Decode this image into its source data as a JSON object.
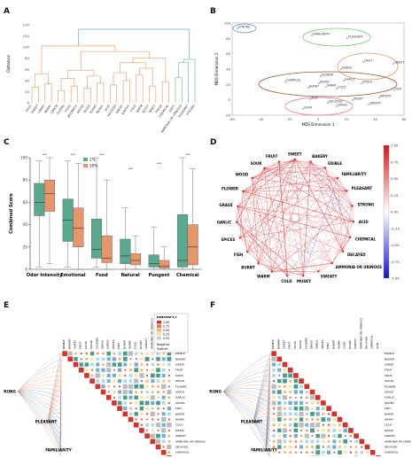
{
  "panels": {
    "a": {
      "label": "A",
      "ylabel": "Distance",
      "yticks": [
        "0",
        "20",
        "40",
        "60",
        "80",
        "100",
        "120",
        "140"
      ],
      "leaves": [
        "FRUIT",
        "SWEET",
        "CANDY",
        "BERRY",
        "LEMON",
        "FLORAL",
        "FOOD",
        "AROMATIC",
        "SPICES",
        "WOOD",
        "BURNT",
        "MUSKY",
        "ACID",
        "DECAYED",
        "SMOKY",
        "EARTHY",
        "COLD",
        "WARM",
        "NUTTY",
        "MINTY",
        "FRESH",
        "CHEMICAL",
        "DIRTY",
        "AMMONIA OR URINOUS",
        "PLEASANT",
        "STRONG"
      ],
      "colors": {
        "orange": "#f2a36b",
        "green": "#6fcf8a",
        "blue": "#6aaed6"
      }
    },
    "b": {
      "label": "B",
      "xlabel": "MDS Dimension 1",
      "ylabel": "MDS Dimension 2",
      "xticks": [
        "-60",
        "-40",
        "-20",
        "0",
        "20",
        "40",
        "60"
      ],
      "yticks": [
        "100",
        "80",
        "60",
        "40",
        "20",
        "0",
        "-20"
      ],
      "points": [
        "STRONG",
        "FAMILIARITY",
        "PLEASANT",
        "FRUIT",
        "SWEET",
        "EDIBLE",
        "CHEMICAL",
        "WOOD",
        "FLOWER",
        "GARLIC",
        "SPICES",
        "BURNT",
        "WARM",
        "COLD",
        "FISH",
        "ACID",
        "DECAYED",
        "MUSKY",
        "SWEATY",
        "BAKERY",
        "SOUR",
        "GRASS"
      ]
    },
    "c": {
      "label": "C",
      "ylabel": "Combined Score",
      "yticks": [
        "0",
        "20",
        "40",
        "60",
        "80",
        "100"
      ],
      "legend": [
        "1%",
        "10%"
      ],
      "sig": "***",
      "colors": {
        "one": "#5aa88d",
        "ten": "#e8956b"
      }
    },
    "d": {
      "label": "D",
      "nodes": [
        "SOUR",
        "FRUIT",
        "SWEET",
        "BAKERY",
        "EDIBLE",
        "FAMILIARITY",
        "PLEASANT",
        "STRONG",
        "ACID",
        "CHEMICAL",
        "DECAYED",
        "AMMONIA OR URINOUS",
        "SWEATY",
        "MUSKY",
        "COLD",
        "WARM",
        "BURNT",
        "FISH",
        "SPICES",
        "GARLIC",
        "GRASS",
        "FLOWER",
        "WOOD"
      ],
      "colorbar_ticks": [
        "1.00",
        "0.75",
        "0.50",
        "0.25",
        "0.00",
        "-0.25",
        "-0.50",
        "-0.75",
        "-1.00"
      ]
    },
    "e": {
      "label": "E",
      "hubs": [
        "STRONG",
        "PLEASANT",
        "FAMILIARITY"
      ],
      "legend_title": "pearson's r",
      "legend_ticks": [
        "1.00",
        "0.75",
        "0.50",
        "0.25",
        "0.00"
      ],
      "legend_items": [
        "Negative",
        "Positive"
      ]
    },
    "f": {
      "label": "F",
      "hubs": [
        "STRONG",
        "PLEASANT",
        "FAMILIARITY"
      ]
    },
    "matrix_labels": [
      "EDIBLE",
      "BAKERY",
      "SWEET",
      "FRUIT",
      "SOUR",
      "WOOD",
      "FLOWER",
      "GRASS",
      "GARLIC",
      "SPICES",
      "FISH",
      "BURNT",
      "WARM",
      "COLD",
      "MUSKY",
      "SWEATY",
      "AMMONIA OR URINOUS",
      "DECAYED",
      "CHEMICAL",
      "ACID"
    ]
  },
  "chart_data": [
    {
      "type": "box",
      "categories": [
        "Odor Intensity",
        "Emotional",
        "Food",
        "Natural",
        "Pungent",
        "Chemical"
      ],
      "series": [
        {
          "name": "1%",
          "boxes": [
            {
              "whislo": 2,
              "q1": 48,
              "med": 60,
              "q3": 77,
              "whishi": 97
            },
            {
              "whislo": 2,
              "q1": 25,
              "med": 44,
              "q3": 63,
              "whishi": 97
            },
            {
              "whislo": 2,
              "q1": 10,
              "med": 18,
              "q3": 45,
              "whishi": 100
            },
            {
              "whislo": 0,
              "q1": 5,
              "med": 12,
              "q3": 27,
              "whishi": 55
            },
            {
              "whislo": 0,
              "q1": 2,
              "med": 5,
              "q3": 13,
              "whishi": 38
            },
            {
              "whislo": 0,
              "q1": 2,
              "med": 8,
              "q3": 49,
              "whishi": 100
            }
          ]
        },
        {
          "name": "10%",
          "boxes": [
            {
              "whislo": 5,
              "q1": 52,
              "med": 68,
              "q3": 80,
              "whishi": 100
            },
            {
              "whislo": 0,
              "q1": 20,
              "med": 37,
              "q3": 55,
              "whishi": 95
            },
            {
              "whislo": 0,
              "q1": 6,
              "med": 10,
              "q3": 30,
              "whishi": 80
            },
            {
              "whislo": 0,
              "q1": 4,
              "med": 8,
              "q3": 14,
              "whishi": 30
            },
            {
              "whislo": 0,
              "q1": 1,
              "med": 3,
              "q3": 8,
              "whishi": 20
            },
            {
              "whislo": 0,
              "q1": 4,
              "med": 20,
              "q3": 40,
              "whishi": 90
            }
          ]
        }
      ],
      "ylim": [
        0,
        100
      ],
      "sig": [
        "***",
        "***",
        "***",
        "***",
        "***",
        "***"
      ]
    }
  ]
}
